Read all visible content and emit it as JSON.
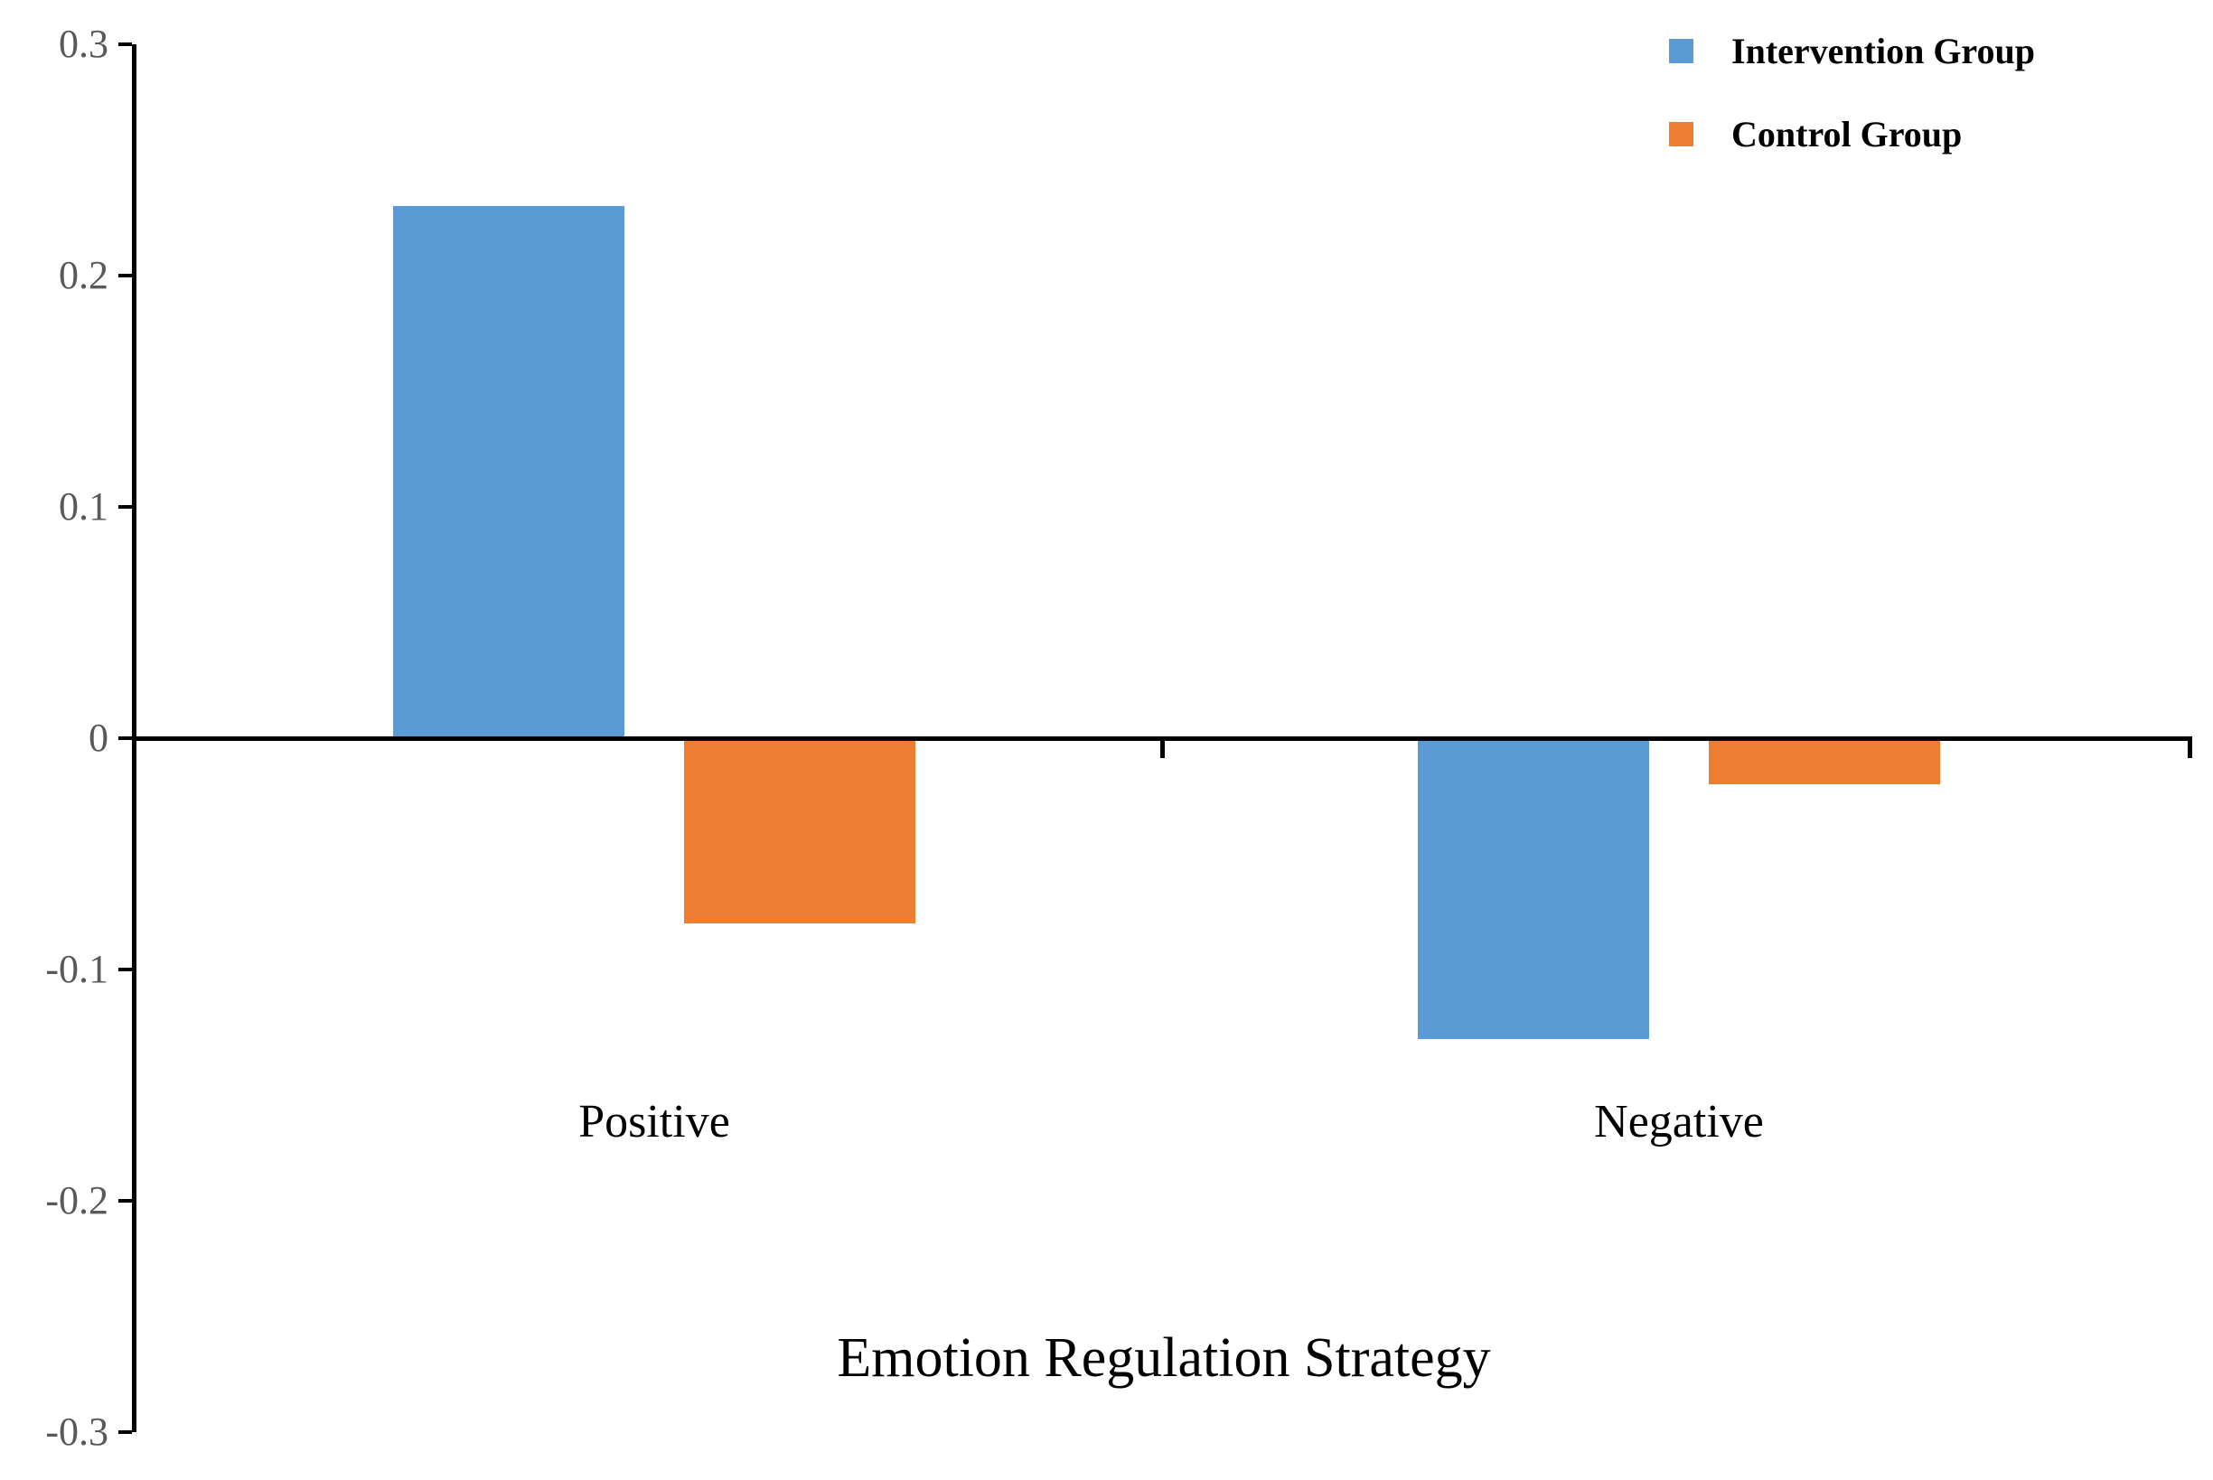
{
  "chart_data": {
    "type": "bar",
    "categories": [
      "Positive",
      "Negative"
    ],
    "series": [
      {
        "name": "Intervention Group",
        "color": "#5B9BD5",
        "values": [
          0.23,
          -0.13
        ]
      },
      {
        "name": "Control Group",
        "color": "#ED7D31",
        "values": [
          -0.08,
          -0.02
        ]
      }
    ],
    "title": "",
    "xlabel": "Emotion Regulation Strategy",
    "ylabel": "",
    "ylim": [
      -0.3,
      0.3
    ],
    "yticks": [
      0.3,
      0.2,
      0.1,
      0,
      -0.1,
      -0.2,
      -0.3
    ],
    "ytick_labels": [
      "0.3",
      "0.2",
      "0.1",
      "0",
      "-0.1",
      "-0.2",
      "-0.3"
    ],
    "grid": false,
    "legend_position": "top-right",
    "axis_color": "#000000",
    "tick_label_color": "#595959"
  }
}
